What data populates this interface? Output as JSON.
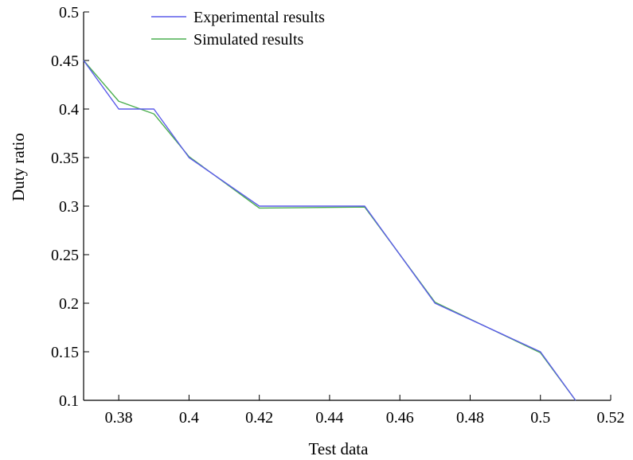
{
  "chart_data": {
    "type": "line",
    "xlabel": "Test data",
    "ylabel": "Duty ratio",
    "xlim": [
      0.37,
      0.52
    ],
    "ylim": [
      0.1,
      0.5
    ],
    "xticks": [
      "0.38",
      "0.4",
      "0.42",
      "0.44",
      "0.46",
      "0.48",
      "0.5",
      "0.52"
    ],
    "yticks": [
      "0.1",
      "0.15",
      "0.2",
      "0.25",
      "0.3",
      "0.35",
      "0.4",
      "0.45",
      "0.5"
    ],
    "legend_position": "top-center",
    "grid": false,
    "series": [
      {
        "name": "Experimental results",
        "color": "#5b5bea",
        "x": [
          0.37,
          0.38,
          0.39,
          0.4,
          0.42,
          0.45,
          0.47,
          0.5,
          0.51
        ],
        "y": [
          0.45,
          0.4,
          0.4,
          0.35,
          0.3,
          0.3,
          0.2,
          0.15,
          0.1
        ]
      },
      {
        "name": "Simulated results",
        "color": "#4caf50",
        "x": [
          0.37,
          0.38,
          0.39,
          0.4,
          0.42,
          0.45,
          0.47,
          0.5,
          0.51
        ],
        "y": [
          0.45,
          0.408,
          0.395,
          0.351,
          0.298,
          0.299,
          0.201,
          0.149,
          0.1
        ]
      }
    ]
  }
}
